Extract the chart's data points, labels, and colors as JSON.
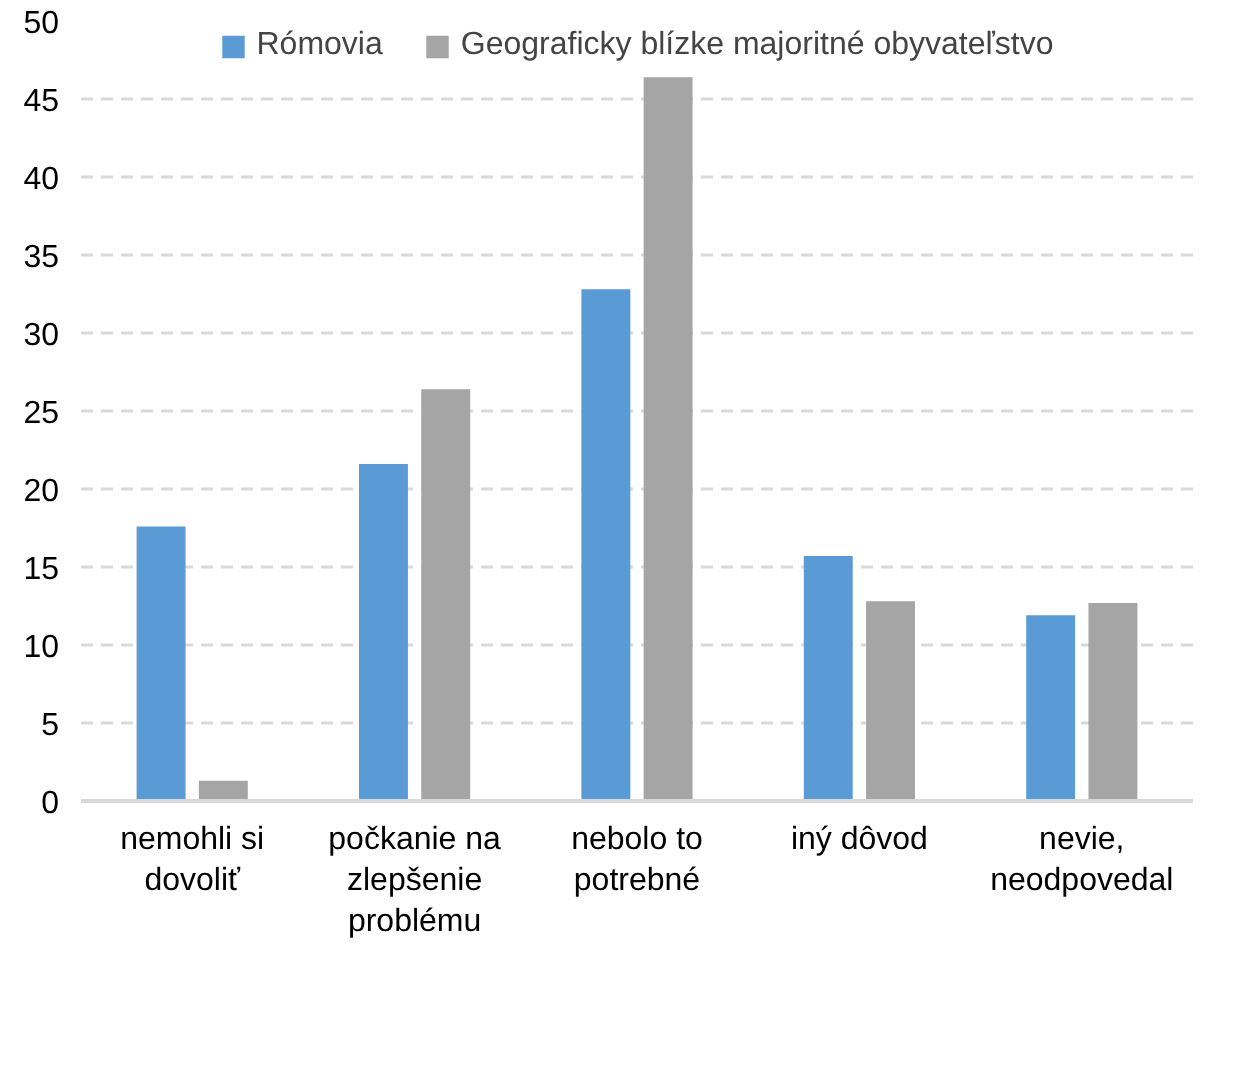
{
  "chart_data": {
    "type": "bar",
    "categories": [
      "nemohli si dovoliť",
      "počkanie na zlepšenie problému",
      "nebolo to potrebné",
      "iný dôvod",
      "nevie, neodpovedal"
    ],
    "series": [
      {
        "name": "Rómovia",
        "color": "#5b9bd5",
        "values": [
          17.6,
          21.6,
          32.8,
          15.7,
          11.9
        ]
      },
      {
        "name": "Geograficky blízke majoritné obyvateľstvo",
        "color": "#a5a5a5",
        "values": [
          1.3,
          26.4,
          46.4,
          12.8,
          12.7
        ]
      }
    ],
    "ylim": [
      0,
      50
    ],
    "yticks": [
      0,
      5,
      10,
      15,
      20,
      25,
      30,
      35,
      40,
      45,
      50
    ],
    "grid": "y",
    "legend": "top"
  }
}
